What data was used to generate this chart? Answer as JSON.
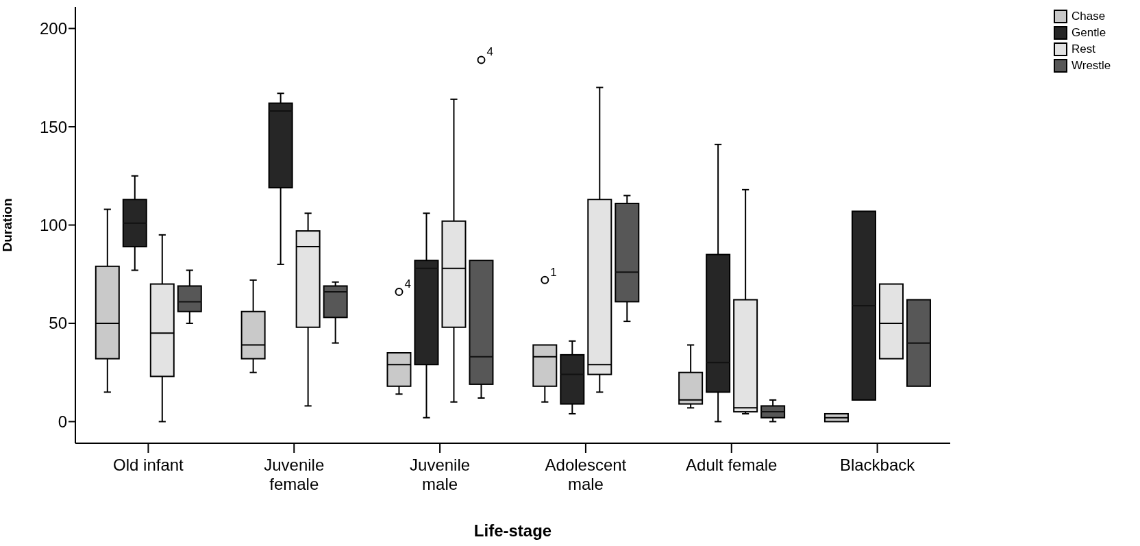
{
  "chart_data": {
    "type": "box",
    "xlabel": "Life-stage",
    "ylabel": "Duration",
    "categories": [
      "Old infant",
      "Juvenile\nfemale",
      "Juvenile\nmale",
      "Adolescent\nmale",
      "Adult female",
      "Blackback"
    ],
    "ylim": [
      -11,
      211
    ],
    "yticks": [
      0,
      50,
      100,
      150,
      200
    ],
    "grid": false,
    "legend": "top right",
    "series": [
      {
        "name": "Chase",
        "color": "#c9c9c9",
        "boxes": [
          {
            "low": 15,
            "q1": 32,
            "median": 50,
            "q3": 79,
            "high": 108
          },
          {
            "low": 25,
            "q1": 32,
            "median": 39,
            "q3": 56,
            "high": 72
          },
          {
            "low": 14,
            "q1": 18,
            "median": 29,
            "q3": 35,
            "high": 35,
            "outliers": [
              66
            ]
          },
          {
            "low": 10,
            "q1": 18,
            "median": 33,
            "q3": 39,
            "high": 39,
            "outliers": [
              72
            ]
          },
          {
            "low": 7,
            "q1": 9,
            "median": 11,
            "q3": 25,
            "high": 39
          },
          {
            "low": 0,
            "q1": 0,
            "median": 2,
            "q3": 4,
            "high": 4
          }
        ]
      },
      {
        "name": "Gentle",
        "color": "#262626",
        "boxes": [
          {
            "low": 77,
            "q1": 89,
            "median": 101,
            "q3": 113,
            "high": 125
          },
          {
            "low": 80,
            "q1": 119,
            "median": 158,
            "q3": 162,
            "high": 167
          },
          {
            "low": 2,
            "q1": 29,
            "median": 78,
            "q3": 82,
            "high": 106
          },
          {
            "low": 4,
            "q1": 9,
            "median": 24,
            "q3": 34,
            "high": 41
          },
          {
            "low": 0,
            "q1": 15,
            "median": 30,
            "q3": 85,
            "high": 141
          },
          {
            "low": 11,
            "q1": 11,
            "median": 59,
            "q3": 107,
            "high": 107
          }
        ]
      },
      {
        "name": "Rest",
        "color": "#e3e3e3",
        "boxes": [
          {
            "low": 0,
            "q1": 23,
            "median": 45,
            "q3": 70,
            "high": 95
          },
          {
            "low": 8,
            "q1": 48,
            "median": 89,
            "q3": 97,
            "high": 106
          },
          {
            "low": 10,
            "q1": 48,
            "median": 78,
            "q3": 102,
            "high": 164
          },
          {
            "low": 15,
            "q1": 24,
            "median": 29,
            "q3": 113,
            "high": 170
          },
          {
            "low": 4,
            "q1": 5,
            "median": 7,
            "q3": 62,
            "high": 118
          },
          {
            "low": 32,
            "q1": 32,
            "median": 50,
            "q3": 70,
            "high": 70
          }
        ]
      },
      {
        "name": "Wrestle",
        "color": "#575757",
        "boxes": [
          {
            "low": 50,
            "q1": 56,
            "median": 61,
            "q3": 69,
            "high": 77
          },
          {
            "low": 40,
            "q1": 53,
            "median": 66,
            "q3": 69,
            "high": 71
          },
          {
            "low": 12,
            "q1": 19,
            "median": 33,
            "q3": 82,
            "high": 82,
            "outliers": [
              184
            ]
          },
          {
            "low": 51,
            "q1": 61,
            "median": 76,
            "q3": 111,
            "high": 115
          },
          {
            "low": 0,
            "q1": 2,
            "median": 5,
            "q3": 8,
            "high": 11
          },
          {
            "low": 18,
            "q1": 18,
            "median": 40,
            "q3": 62,
            "high": 62
          }
        ]
      }
    ],
    "annotations": [
      "4",
      "4",
      "1"
    ]
  }
}
